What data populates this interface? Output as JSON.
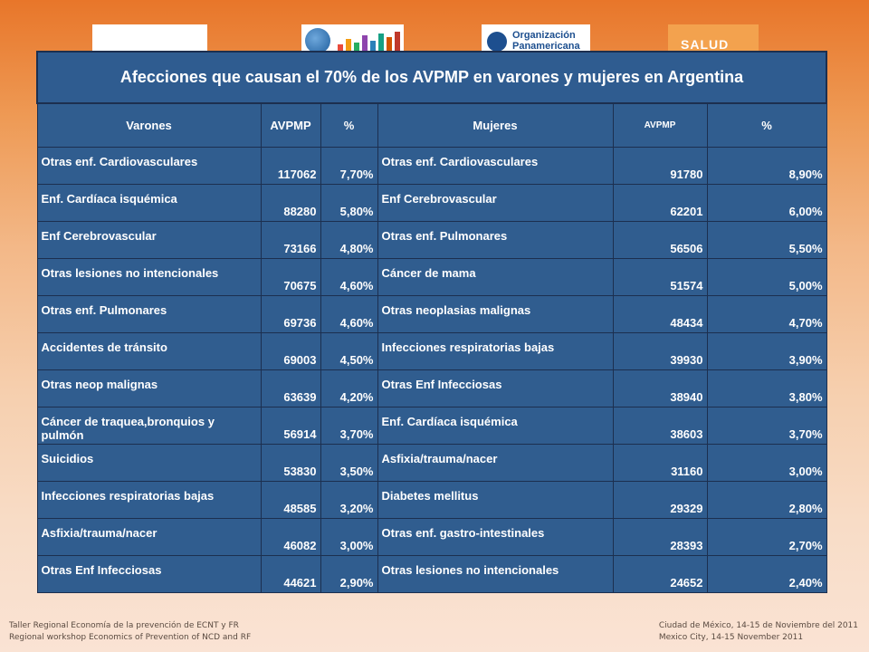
{
  "logos": {
    "salud": "SALUD",
    "ops_line1": "Organización",
    "ops_line2": "Panamericana"
  },
  "table": {
    "title": "Afecciones que causan el 70% de los AVPMP en varones y mujeres en Argentina",
    "headers": [
      "Varones",
      "AVPMP",
      "%",
      "Mujeres",
      "AVPMP",
      "%"
    ],
    "rows": [
      {
        "m_name": "Otras enf. Cardiovasculares",
        "m_avpmp": "117062",
        "m_pct": "7,70%",
        "f_name": "Otras enf. Cardiovasculares",
        "f_avpmp": "91780",
        "f_pct": "8,90%"
      },
      {
        "m_name": "Enf. Cardíaca isquémica",
        "m_avpmp": "88280",
        "m_pct": "5,80%",
        "f_name": "Enf Cerebrovascular",
        "f_avpmp": "62201",
        "f_pct": "6,00%"
      },
      {
        "m_name": "Enf Cerebrovascular",
        "m_avpmp": "73166",
        "m_pct": "4,80%",
        "f_name": "Otras enf. Pulmonares",
        "f_avpmp": "56506",
        "f_pct": "5,50%"
      },
      {
        "m_name": "Otras lesiones no intencionales",
        "m_avpmp": "70675",
        "m_pct": "4,60%",
        "f_name": "Cáncer de mama",
        "f_avpmp": "51574",
        "f_pct": "5,00%"
      },
      {
        "m_name": "Otras enf. Pulmonares",
        "m_avpmp": "69736",
        "m_pct": "4,60%",
        "f_name": "Otras neoplasias malignas",
        "f_avpmp": "48434",
        "f_pct": "4,70%"
      },
      {
        "m_name": "Accidentes de tránsito",
        "m_avpmp": "69003",
        "m_pct": "4,50%",
        "f_name": "Infecciones respiratorias bajas",
        "f_avpmp": "39930",
        "f_pct": "3,90%"
      },
      {
        "m_name": "Otras neop malignas",
        "m_avpmp": "63639",
        "m_pct": "4,20%",
        "f_name": "Otras Enf Infecciosas",
        "f_avpmp": "38940",
        "f_pct": "3,80%"
      },
      {
        "m_name": "Cáncer de traquea,bronquios y pulmón",
        "m_avpmp": "56914",
        "m_pct": "3,70%",
        "f_name": "Enf. Cardíaca isquémica",
        "f_avpmp": "38603",
        "f_pct": "3,70%"
      },
      {
        "m_name": "Suicidios",
        "m_avpmp": "53830",
        "m_pct": "3,50%",
        "f_name": "Asfixia/trauma/nacer",
        "f_avpmp": "31160",
        "f_pct": "3,00%"
      },
      {
        "m_name": "Infecciones respiratorias bajas",
        "m_avpmp": "48585",
        "m_pct": "3,20%",
        "f_name": "Diabetes mellitus",
        "f_avpmp": "29329",
        "f_pct": "2,80%"
      },
      {
        "m_name": "Asfixia/trauma/nacer",
        "m_avpmp": "46082",
        "m_pct": "3,00%",
        "f_name": "Otras enf. gastro-intestinales",
        "f_avpmp": "28393",
        "f_pct": "2,70%"
      },
      {
        "m_name": "Otras Enf Infecciosas",
        "m_avpmp": "44621",
        "m_pct": "2,90%",
        "f_name": "Otras lesiones no intencionales",
        "f_avpmp": "24652",
        "f_pct": "2,40%"
      }
    ]
  },
  "footer": {
    "left_line1": "Taller Regional Economía de la prevención de ECNT y FR",
    "left_line2": "Regional workshop Economics of Prevention of NCD and RF",
    "right_line1": "Ciudad de México,  14-15  de Noviembre del 2011",
    "right_line2": "Mexico City, 14-15  November  2011"
  },
  "colors": {
    "table_fill": "#305d8f",
    "table_border": "#1c2f4f",
    "background_top": "#e8762a",
    "background_bottom": "#fae3d4"
  }
}
